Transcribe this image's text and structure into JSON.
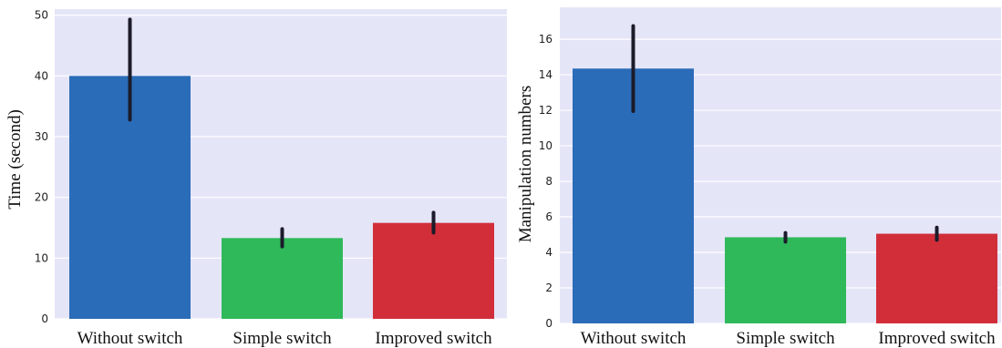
{
  "chart_data": [
    {
      "type": "bar",
      "categories": [
        "Without switch",
        "Simple switch",
        "Improved switch"
      ],
      "values": [
        40,
        13.3,
        15.8
      ],
      "error_low": [
        32.8,
        11.9,
        14.2
      ],
      "error_high": [
        49.3,
        14.8,
        17.5
      ],
      "ylabel": "Time (second)",
      "xlabel": "",
      "ylim": [
        0,
        51
      ],
      "yticks": [
        0,
        10,
        20,
        30,
        40,
        50
      ],
      "grid": true,
      "colors": [
        "#2b6cb8",
        "#2fb95a",
        "#d12e3a"
      ],
      "background": "#e5e5f8"
    },
    {
      "type": "bar",
      "categories": [
        "Without switch",
        "Simple switch",
        "Improved switch"
      ],
      "values": [
        14.35,
        4.85,
        5.05
      ],
      "error_low": [
        11.95,
        4.6,
        4.7
      ],
      "error_high": [
        16.75,
        5.1,
        5.4
      ],
      "ylabel": "Manipulation numbers",
      "xlabel": "",
      "ylim": [
        0,
        17.8
      ],
      "yticks": [
        0,
        2,
        4,
        6,
        8,
        10,
        12,
        14,
        16
      ],
      "grid": true,
      "colors": [
        "#2b6cb8",
        "#2fb95a",
        "#d12e3a"
      ],
      "background": "#e5e5f8"
    }
  ]
}
